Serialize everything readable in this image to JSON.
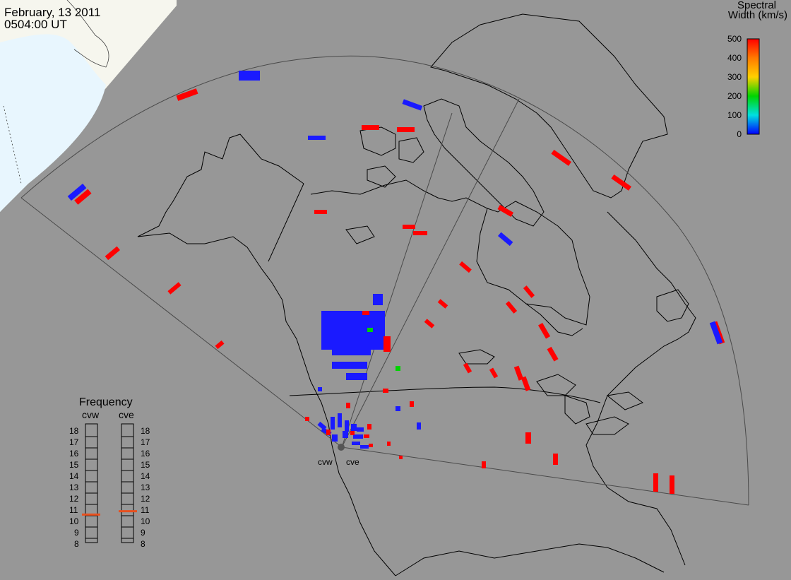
{
  "header": {
    "date": "February, 13 2011",
    "time": "0504:00 UT"
  },
  "colorbar": {
    "title_line1": "Spectral",
    "title_line2": "Width (km/s)",
    "ticks": [
      "500",
      "400",
      "300",
      "200",
      "100",
      "0"
    ],
    "colors": [
      "#ff0000",
      "#ff7a00",
      "#ffd000",
      "#00d400",
      "#00e0e0",
      "#0000ff"
    ]
  },
  "frequency_panel": {
    "title": "Frequency",
    "radars": [
      {
        "code": "cvw",
        "value_mhz": 10.6,
        "marker_color": "#e8501e"
      },
      {
        "code": "cve",
        "value_mhz": 10.9,
        "marker_color": "#e8501e"
      }
    ],
    "scale": [
      "18",
      "17",
      "16",
      "15",
      "14",
      "13",
      "12",
      "11",
      "10",
      "9",
      "8"
    ]
  },
  "sites": [
    "cvw",
    "cve"
  ],
  "map_colors": {
    "background": "#979797",
    "daylight": "#f6f6ee",
    "ocean_day": "#e8f6fe",
    "coast": "#000000",
    "fov": "#4a4a4a"
  }
}
